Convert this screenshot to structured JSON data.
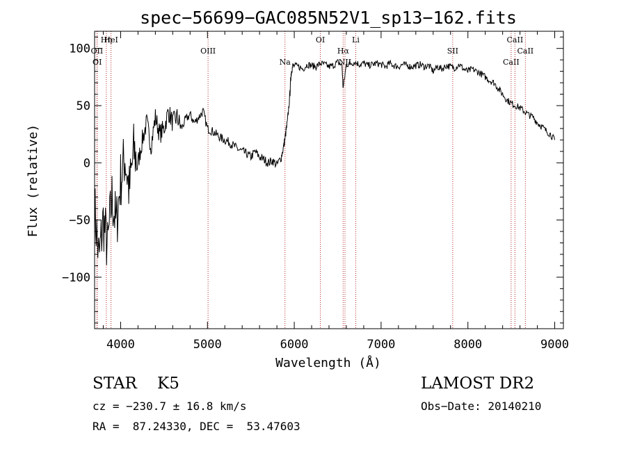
{
  "chart_data": {
    "type": "line",
    "title": "spec−56699−GAC085N52V1_sp13−162.fits",
    "xlabel": "Wavelength (Å)",
    "ylabel": "Flux (relative)",
    "xlim": [
      3700,
      9100
    ],
    "ylim": [
      -145,
      115
    ],
    "xticks": [
      4000,
      5000,
      6000,
      7000,
      8000,
      9000
    ],
    "xtick_labels": [
      "4000",
      "5000",
      "6000",
      "7000",
      "8000",
      "9000"
    ],
    "yticks": [
      100,
      50,
      0,
      -50,
      -100
    ],
    "ytick_labels": [
      "100",
      "50",
      "0",
      "−50",
      "−100"
    ],
    "grid": false,
    "spectrum": {
      "x": [
        3700,
        3750,
        3800,
        3850,
        3900,
        3950,
        4000,
        4050,
        4100,
        4150,
        4200,
        4250,
        4300,
        4350,
        4400,
        4450,
        4500,
        4550,
        4600,
        4650,
        4700,
        4750,
        4800,
        4850,
        4900,
        4950,
        5000,
        5050,
        5100,
        5150,
        5200,
        5250,
        5300,
        5350,
        5400,
        5450,
        5500,
        5550,
        5600,
        5650,
        5700,
        5750,
        5800,
        5850,
        5880,
        5900,
        5920,
        5950,
        5960,
        5970,
        5990,
        6050,
        6100,
        6150,
        6200,
        6250,
        6300,
        6350,
        6400,
        6450,
        6500,
        6550,
        6563,
        6600,
        6650,
        6700,
        6750,
        6800,
        6850,
        6900,
        6950,
        7000,
        7050,
        7100,
        7150,
        7200,
        7250,
        7300,
        7350,
        7400,
        7450,
        7500,
        7550,
        7600,
        7650,
        7700,
        7750,
        7800,
        7850,
        7900,
        7950,
        8000,
        8050,
        8100,
        8150,
        8200,
        8250,
        8300,
        8350,
        8400,
        8450,
        8500,
        8550,
        8600,
        8650,
        8700,
        8750,
        8800,
        8850,
        8900,
        8950,
        9000
      ],
      "y": [
        -40,
        -85,
        -50,
        -75,
        -30,
        -55,
        -15,
        5,
        -25,
        10,
        0,
        20,
        35,
        15,
        40,
        25,
        30,
        45,
        35,
        40,
        30,
        38,
        42,
        35,
        40,
        45,
        30,
        28,
        25,
        22,
        20,
        18,
        15,
        12,
        10,
        8,
        5,
        10,
        5,
        3,
        0,
        2,
        -2,
        5,
        15,
        25,
        35,
        60,
        75,
        82,
        85,
        84,
        82,
        86,
        85,
        84,
        87,
        86,
        84,
        85,
        88,
        85,
        65,
        86,
        87,
        88,
        86,
        87,
        85,
        86,
        87,
        86,
        84,
        87,
        85,
        84,
        86,
        85,
        84,
        85,
        86,
        84,
        85,
        80,
        84,
        82,
        85,
        84,
        83,
        86,
        82,
        80,
        82,
        80,
        78,
        75,
        72,
        70,
        65,
        60,
        55,
        52,
        50,
        48,
        45,
        42,
        40,
        35,
        32,
        28,
        25,
        20
      ]
    },
    "lines": [
      {
        "label": "Hη",
        "x": 3835
      },
      {
        "label": "OII",
        "x": 3727
      },
      {
        "label": "OI",
        "x": 3730
      },
      {
        "label": "HeI",
        "x": 3889
      },
      {
        "label": "OIII",
        "x": 5007
      },
      {
        "label": "Na",
        "x": 5893
      },
      {
        "label": "OI",
        "x": 6300
      },
      {
        "label": "Hα",
        "x": 6563
      },
      {
        "label": "NII",
        "x": 6584
      },
      {
        "label": "Li",
        "x": 6708
      },
      {
        "label": "SII",
        "x": 7825
      },
      {
        "label": "CaII",
        "x": 8498
      },
      {
        "label": "CaII",
        "x": 8542
      },
      {
        "label": "CaII",
        "x": 8662
      }
    ]
  },
  "info": {
    "type": "STAR    K5",
    "survey": "LAMOST DR2",
    "cz": "cz = −230.7 ± 16.8 km/s",
    "obs_date": "Obs−Date: 20140210",
    "radec": "RA =  87.24330, DEC =  53.47603"
  }
}
